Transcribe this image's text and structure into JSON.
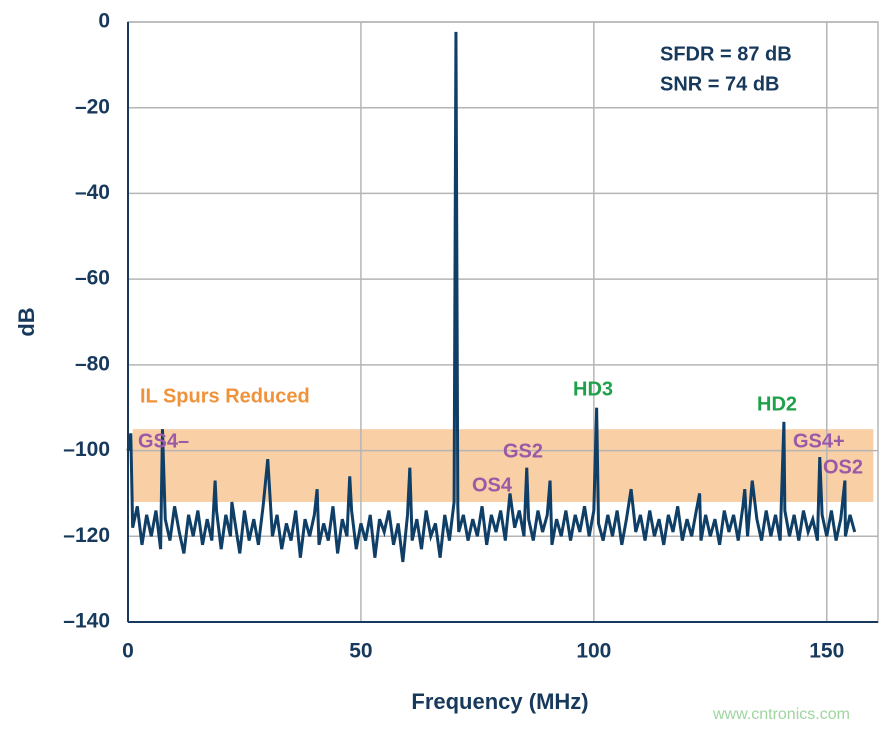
{
  "chart_data": {
    "type": "line",
    "x_label": "Frequency (MHz)",
    "y_label": "dB",
    "xlim": [
      0,
      161
    ],
    "ylim": [
      -140,
      0
    ],
    "xticks": [
      0,
      50,
      100,
      150
    ],
    "yticks": [
      0,
      {
        "value": -20,
        "label": "–20"
      },
      {
        "value": -40,
        "label": "–40"
      },
      {
        "value": -60,
        "label": "–60"
      },
      {
        "value": -80,
        "label": "–80"
      },
      {
        "value": -100,
        "label": "–100"
      },
      {
        "value": -120,
        "label": "–120"
      },
      {
        "value": -140,
        "label": "–140"
      }
    ],
    "grid": true,
    "color": "#0f3e66",
    "x": [
      0,
      0.6,
      1,
      2,
      3,
      4,
      5,
      6,
      7,
      7.4,
      8,
      9,
      10,
      11,
      12,
      13,
      14,
      15,
      16,
      17,
      18,
      18.7,
      19,
      20,
      21,
      22,
      22.3,
      23,
      24,
      25,
      26,
      27,
      28,
      29,
      30,
      31,
      32,
      33,
      34,
      35,
      36,
      37,
      38,
      39,
      40,
      40.6,
      41,
      42,
      43,
      44,
      45,
      46,
      47,
      47.6,
      48,
      49,
      50,
      51,
      52,
      53,
      54,
      55,
      56,
      57,
      58,
      59,
      60,
      60.5,
      61,
      62,
      63,
      64,
      65,
      66,
      67,
      68,
      69,
      70,
      70.4,
      70.8,
      71,
      72,
      73,
      74,
      75,
      76,
      77,
      78,
      79,
      80,
      81,
      82,
      83,
      84,
      85,
      85.6,
      86,
      87,
      88,
      89,
      90,
      90.6,
      91,
      92,
      93,
      94,
      95,
      96,
      97,
      98,
      99,
      100,
      100.6,
      101,
      102,
      103,
      104,
      105,
      106,
      107,
      108,
      109,
      110,
      111,
      112,
      113,
      114,
      115,
      116,
      117,
      118,
      119,
      120,
      121,
      122,
      122.7,
      123,
      124,
      125,
      126,
      127,
      128,
      129,
      130,
      131,
      132,
      132.4,
      133,
      134,
      135,
      136,
      137,
      138,
      139,
      140,
      140.8,
      141,
      142,
      143,
      144,
      145,
      146,
      147,
      148,
      148.5,
      149,
      150,
      151,
      152,
      153,
      153.9,
      154,
      155,
      156
    ],
    "values": [
      -100,
      -96,
      -118,
      -113,
      -122,
      -115,
      -120,
      -114,
      -123,
      -95,
      -116,
      -121,
      -113,
      -119,
      -124,
      -115,
      -120,
      -114,
      -122,
      -116,
      -121,
      -107,
      -114,
      -123,
      -115,
      -120,
      -112,
      -117,
      -124,
      -114,
      -121,
      -116,
      -122,
      -113,
      -102,
      -120,
      -115,
      -123,
      -117,
      -121,
      -114,
      -125,
      -116,
      -120,
      -115,
      -109,
      -122,
      -117,
      -121,
      -113,
      -124,
      -116,
      -120,
      -106,
      -114,
      -123,
      -117,
      -121,
      -115,
      -125,
      -116,
      -119,
      -114,
      -122,
      -117,
      -126,
      -115,
      -104,
      -121,
      -116,
      -123,
      -114,
      -120,
      -117,
      -125,
      -115,
      -121,
      -112,
      -2.3,
      -113,
      -119,
      -115,
      -121,
      -116,
      -120,
      -113,
      -122,
      -115,
      -119,
      -114,
      -121,
      -110,
      -118,
      -114,
      -120,
      -104,
      -116,
      -121,
      -114,
      -119,
      -115,
      -107,
      -122,
      -116,
      -120,
      -114,
      -121,
      -115,
      -119,
      -113,
      -120,
      -114,
      -90,
      -117,
      -121,
      -115,
      -120,
      -114,
      -122,
      -116,
      -109,
      -119,
      -115,
      -121,
      -114,
      -120,
      -116,
      -122,
      -115,
      -119,
      -113,
      -121,
      -116,
      -120,
      -114,
      -110,
      -121,
      -115,
      -120,
      -116,
      -122,
      -114,
      -119,
      -115,
      -121,
      -113,
      -109,
      -120,
      -107,
      -116,
      -121,
      -114,
      -120,
      -115,
      -121,
      -93.3,
      -114,
      -120,
      -115,
      -121,
      -114,
      -119,
      -116,
      -121,
      -101.5,
      -115,
      -120,
      -114,
      -121,
      -116,
      -107,
      -120,
      -115,
      -119
    ],
    "band": {
      "x": [
        1,
        160
      ],
      "y": [
        -112,
        -95
      ],
      "color": "#f9cfa6",
      "label": "IL Spurs Reduced",
      "label_color": "#f0923a"
    },
    "annotations": [
      {
        "text": "SFDR = 87 dB",
        "color": "#17395c"
      },
      {
        "text": "SNR = 74 dB",
        "color": "#17395c"
      },
      {
        "text": "GS4–",
        "color": "#9b5aa6"
      },
      {
        "text": "GS2",
        "color": "#9b5aa6"
      },
      {
        "text": "OS4",
        "color": "#9b5aa6"
      },
      {
        "text": "HD3",
        "color": "#1fa04a"
      },
      {
        "text": "HD2",
        "color": "#1fa04a"
      },
      {
        "text": "GS4+",
        "color": "#9b5aa6"
      },
      {
        "text": "OS2",
        "color": "#9b5aa6"
      }
    ],
    "watermark": "www.cntronics.com"
  }
}
